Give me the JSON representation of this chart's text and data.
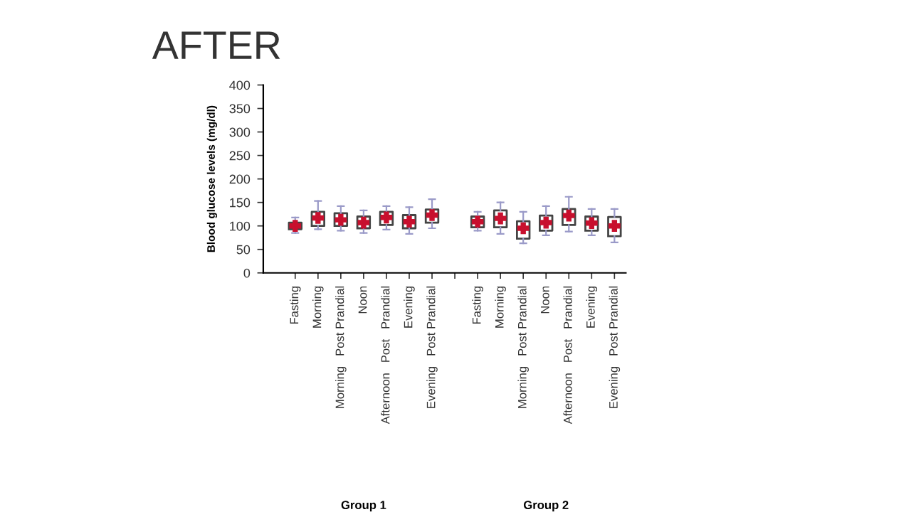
{
  "chart_data": {
    "type": "box",
    "title": "AFTER",
    "ylabel": "Blood glucose levels (mg/dl)",
    "categories": [
      "Fasting",
      "Morning",
      "Morning   Post Prandial",
      "Noon",
      "Afternoon   Post   Prandial",
      "Evening",
      "Evening   Post Prandial",
      null,
      "Fasting",
      "Morning",
      "Morning   Post Prandial",
      "Noon",
      "Afternoon   Post   Prandial",
      "Evening",
      "Evening   Post Prandial"
    ],
    "series": [
      {
        "color": "#444444",
        "boxes": [
          {
            "low": 85,
            "q1": 93,
            "median": 100,
            "q3": 107,
            "high": 118,
            "mean": 100
          },
          {
            "low": 93,
            "q1": 100,
            "median": 117,
            "q3": 130,
            "high": 153,
            "mean": 117
          },
          {
            "low": 90,
            "q1": 100,
            "median": 113,
            "q3": 127,
            "high": 142,
            "mean": 113
          },
          {
            "low": 85,
            "q1": 95,
            "median": 107,
            "q3": 120,
            "high": 133,
            "mean": 107
          },
          {
            "low": 92,
            "q1": 102,
            "median": 118,
            "q3": 130,
            "high": 142,
            "mean": 118
          },
          {
            "low": 83,
            "q1": 95,
            "median": 109,
            "q3": 123,
            "high": 140,
            "mean": 109
          },
          {
            "low": 95,
            "q1": 107,
            "median": 123,
            "q3": 135,
            "high": 157,
            "mean": 123
          },
          null,
          {
            "low": 90,
            "q1": 97,
            "median": 109,
            "q3": 120,
            "high": 130,
            "mean": 109
          },
          {
            "low": 83,
            "q1": 97,
            "median": 116,
            "q3": 133,
            "high": 150,
            "mean": 116
          },
          {
            "low": 63,
            "q1": 73,
            "median": 95,
            "q3": 110,
            "high": 130,
            "mean": 95
          },
          {
            "low": 80,
            "q1": 90,
            "median": 107,
            "q3": 122,
            "high": 142,
            "mean": 107
          },
          {
            "low": 88,
            "q1": 102,
            "median": 122,
            "q3": 136,
            "high": 162,
            "mean": 122
          },
          {
            "low": 80,
            "q1": 90,
            "median": 106,
            "q3": 120,
            "high": 136,
            "mean": 106
          },
          {
            "low": 65,
            "q1": 78,
            "median": 100,
            "q3": 119,
            "high": 136,
            "mean": 100
          }
        ]
      }
    ],
    "ylim": [
      0,
      400
    ],
    "yticks": [
      0,
      50,
      100,
      150,
      200,
      250,
      300,
      350,
      400
    ],
    "annotations": [
      "Group 1",
      "Group 2"
    ]
  }
}
